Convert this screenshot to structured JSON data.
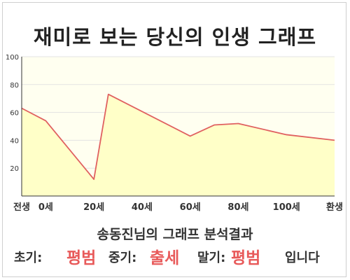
{
  "title": "재미로 보는 당신의 인생 그래프",
  "chart_data": {
    "type": "area",
    "x": [
      -10,
      0,
      20,
      26,
      60,
      70,
      80,
      100,
      120
    ],
    "y": [
      63,
      54,
      12,
      73,
      43,
      51,
      52,
      44,
      40
    ],
    "xlim": [
      -10,
      120
    ],
    "ylim": [
      0,
      100
    ],
    "yticks": [
      20,
      40,
      60,
      80,
      100
    ],
    "xtick_labels": [
      {
        "x": -10,
        "label": "전생"
      },
      {
        "x": 0,
        "label": "0세"
      },
      {
        "x": 20,
        "label": "20세"
      },
      {
        "x": 40,
        "label": "40세"
      },
      {
        "x": 60,
        "label": "60세"
      },
      {
        "x": 80,
        "label": "80세"
      },
      {
        "x": 100,
        "label": "100세"
      },
      {
        "x": 120,
        "label": "환생"
      }
    ],
    "grid": true,
    "colors": {
      "line": "#e06060",
      "fill": "#ffffc8",
      "plot_bg": "#fffff0",
      "grid": "#e3e3e3"
    }
  },
  "result": {
    "heading": "송동진님의 그래프 분석결과",
    "early_label": "초기:",
    "early_value": "평범",
    "mid_label": "중기:",
    "mid_value": "출세",
    "late_label": "말기:",
    "late_value": "평범",
    "suffix": "입니다"
  }
}
